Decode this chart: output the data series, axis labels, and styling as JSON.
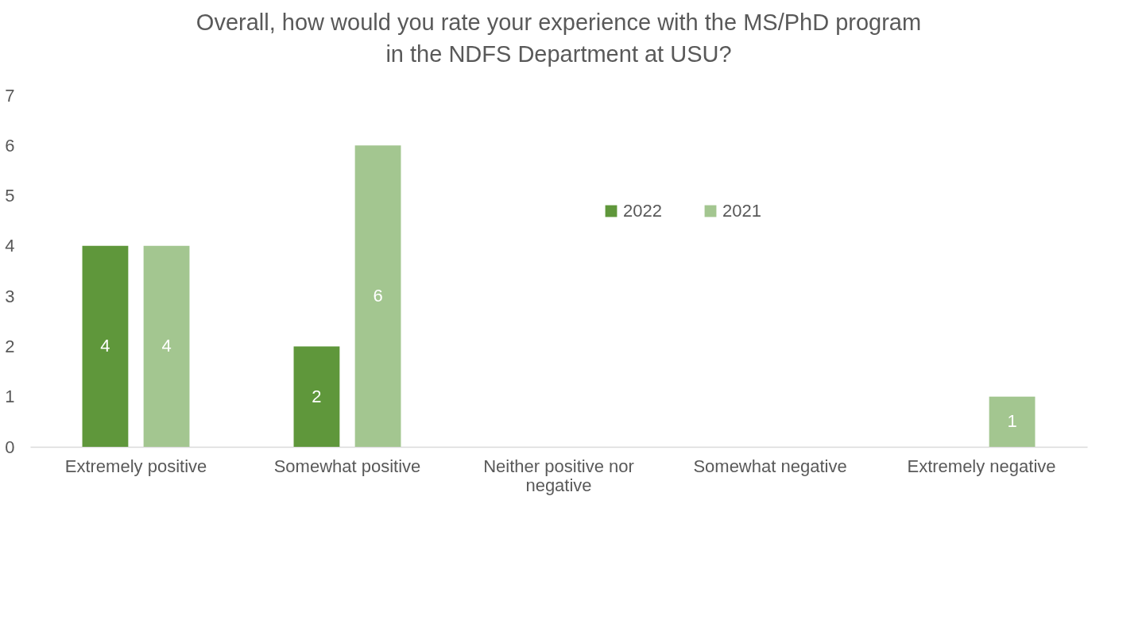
{
  "chart_data": {
    "type": "bar",
    "title": "Overall, how would you rate your experience with the MS/PhD program in the NDFS Department at USU?",
    "categories": [
      "Extremely positive",
      "Somewhat positive",
      "Neither positive nor negative",
      "Somewhat negative",
      "Extremely negative"
    ],
    "series": [
      {
        "name": "2022",
        "color": "#5f973b",
        "values": [
          4,
          2,
          null,
          null,
          null
        ]
      },
      {
        "name": "2021",
        "color": "#a3c690",
        "values": [
          4,
          6,
          null,
          null,
          1
        ]
      }
    ],
    "ylim": [
      0,
      7
    ],
    "yticks": [
      0,
      1,
      2,
      3,
      4,
      5,
      6,
      7
    ],
    "grid": false,
    "legend": "top right",
    "data_labels": true
  }
}
